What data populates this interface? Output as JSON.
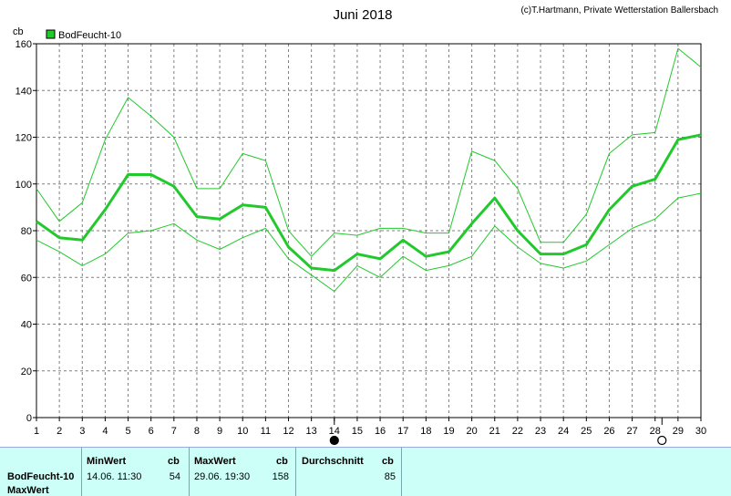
{
  "chart_data": {
    "type": "line",
    "title": "Juni 2018",
    "credit": "(c)T.Hartmann, Private Wetterstation Ballersbach",
    "ylabel": "cb",
    "ylim": [
      0,
      160
    ],
    "yticks": [
      0,
      20,
      40,
      60,
      80,
      100,
      120,
      140,
      160
    ],
    "xlim": [
      1,
      30
    ],
    "x": [
      1,
      2,
      3,
      4,
      5,
      6,
      7,
      8,
      9,
      10,
      11,
      12,
      13,
      14,
      15,
      16,
      17,
      18,
      19,
      20,
      21,
      22,
      23,
      24,
      25,
      26,
      27,
      28,
      29,
      30
    ],
    "grid": true,
    "legend": "top-left",
    "series": [
      {
        "name": "BodFeucht-10",
        "role": "avg",
        "color": "#22c92c",
        "values": [
          84,
          77,
          76,
          89,
          104,
          104,
          99,
          86,
          85,
          91,
          90,
          73,
          64,
          63,
          70,
          68,
          76,
          69,
          71,
          83,
          94,
          80,
          70,
          70,
          74,
          89,
          99,
          102,
          119,
          121
        ]
      },
      {
        "role": "max",
        "color": "#22c92c",
        "values": [
          98,
          84,
          92,
          119,
          137,
          129,
          120,
          98,
          98,
          113,
          110,
          80,
          69,
          79,
          78,
          81,
          81,
          79,
          79,
          114,
          110,
          98,
          75,
          75,
          87,
          113,
          121,
          122,
          158,
          150
        ]
      },
      {
        "role": "min",
        "color": "#22c92c",
        "values": [
          76,
          71,
          65,
          70,
          79,
          80,
          83,
          76,
          72,
          77,
          81,
          68,
          61,
          54,
          65,
          60,
          69,
          63,
          65,
          69,
          82,
          73,
          66,
          64,
          67,
          74,
          81,
          85,
          94,
          96
        ]
      }
    ],
    "markers": [
      {
        "x": 14,
        "kind": "filled"
      },
      {
        "x": 28.3,
        "kind": "open"
      }
    ]
  },
  "stats": {
    "header": {
      "min": "MinWert",
      "min_unit": "cb",
      "max": "MaxWert",
      "max_unit": "cb",
      "avg": "Durchschnitt",
      "avg_unit": "cb"
    },
    "row": {
      "name": "BodFeucht-10",
      "min_time": "14.06.  11:30",
      "min_value": "54",
      "max_time": "29.06.  19:30",
      "max_value": "158",
      "avg_value": "85"
    },
    "footer_label": "MaxWert"
  }
}
